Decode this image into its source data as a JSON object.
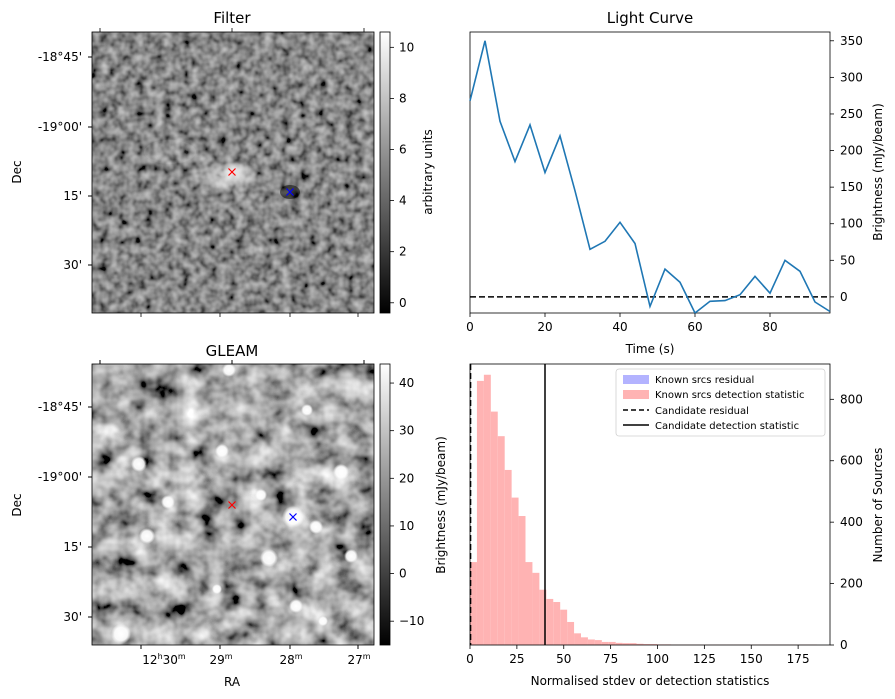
{
  "panels": {
    "filter": {
      "title": "Filter",
      "ylabel": "Dec",
      "dec_ticks": [
        "-18°45'",
        "-19°00'",
        "15'",
        "30'"
      ],
      "colorbar_label": "arbitrary units",
      "colorbar_ticks": [
        "0",
        "2",
        "4",
        "6",
        "8",
        "10"
      ],
      "colorbar_range": [
        -0.4,
        10.6
      ],
      "markers": [
        {
          "name": "candidate",
          "symbol": "x",
          "color": "#ff0000"
        },
        {
          "name": "known-source",
          "symbol": "x",
          "color": "#0000ff"
        }
      ]
    },
    "gleam": {
      "title": "GLEAM",
      "ylabel": "Dec",
      "xlabel": "RA",
      "dec_ticks": [
        "-18°45'",
        "-19°00'",
        "15'",
        "30'"
      ],
      "ra_ticks": [
        {
          "h": "12",
          "hs": "h",
          "m": "30",
          "ms": "m"
        },
        {
          "h": "",
          "hs": "",
          "m": "29",
          "ms": "m"
        },
        {
          "h": "",
          "hs": "",
          "m": "28",
          "ms": "m"
        },
        {
          "h": "",
          "hs": "",
          "m": "27",
          "ms": "m"
        }
      ],
      "colorbar_ticks": [
        "−10",
        "0",
        "10",
        "20",
        "30",
        "40"
      ],
      "colorbar_range": [
        -15,
        44
      ],
      "markers": [
        {
          "name": "candidate",
          "symbol": "x",
          "color": "#ff0000"
        },
        {
          "name": "known-source",
          "symbol": "x",
          "color": "#0000ff"
        }
      ]
    }
  },
  "chart_data": [
    {
      "type": "line",
      "title": "Light Curve",
      "xlabel": "Time (s)",
      "ylabel": "Brightness (mJy/beam)",
      "xlim": [
        0,
        96
      ],
      "ylim": [
        -22,
        362
      ],
      "x_ticks": [
        "0",
        "20",
        "40",
        "60",
        "80"
      ],
      "y_ticks": [
        "0",
        "50",
        "100",
        "150",
        "200",
        "250",
        "300",
        "350"
      ],
      "series": [
        {
          "color": "#1f77b4",
          "x": [
            0,
            4,
            8,
            12,
            16,
            20,
            24,
            28,
            32,
            36,
            40,
            44,
            48,
            52,
            56,
            60,
            64,
            68,
            72,
            76,
            80,
            84,
            88,
            92,
            96
          ],
          "y": [
            268,
            350,
            240,
            185,
            235,
            170,
            220,
            145,
            65,
            76,
            102,
            73,
            -13,
            38,
            20,
            -22,
            -6,
            -5,
            3,
            28,
            5,
            50,
            35,
            -7,
            -20
          ]
        }
      ],
      "reference_line": {
        "y": 0,
        "style": "dashed",
        "color": "#000000"
      }
    },
    {
      "type": "histogram",
      "xlabel": "Normalised stdev or detection statistics",
      "ylabel_left": "Brightness (mJy/beam)",
      "ylabel_right": "Number of Sources",
      "xlim": [
        0,
        192
      ],
      "ylim": [
        0,
        915
      ],
      "x_ticks": [
        "0",
        "25",
        "50",
        "75",
        "100",
        "125",
        "150",
        "175"
      ],
      "y_ticks": [
        "0",
        "200",
        "400",
        "600",
        "800"
      ],
      "bin_width": 3.7,
      "series": [
        {
          "name": "Known srcs residual",
          "color": "#b3b3ff",
          "bin_start": 0,
          "counts": [
            0
          ]
        },
        {
          "name": "Known srcs detection statistic",
          "color": "#ffb3b3",
          "bin_start": 0,
          "counts": [
            270,
            860,
            880,
            760,
            680,
            570,
            480,
            420,
            270,
            235,
            180,
            150,
            140,
            115,
            75,
            38,
            25,
            18,
            16,
            10,
            10,
            7,
            6,
            6,
            4,
            3,
            3,
            2,
            2,
            1,
            1,
            1,
            1,
            1,
            1,
            1,
            1,
            1,
            1,
            1,
            1,
            1,
            1,
            1,
            1,
            1,
            1,
            1,
            1,
            1
          ]
        }
      ],
      "vlines": [
        {
          "name": "Candidate residual",
          "x": 0.3,
          "style": "dashed",
          "color": "#000000"
        },
        {
          "name": "Candidate detection statistic",
          "x": 40,
          "style": "solid",
          "color": "#000000"
        }
      ],
      "legend_position": "top-right"
    }
  ]
}
